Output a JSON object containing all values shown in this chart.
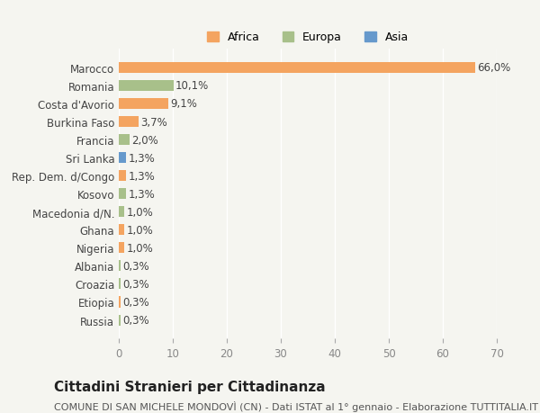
{
  "countries": [
    "Marocco",
    "Romania",
    "Costa d'Avorio",
    "Burkina Faso",
    "Francia",
    "Sri Lanka",
    "Rep. Dem. d/Congo",
    "Kosovo",
    "Macedonia d/N.",
    "Ghana",
    "Nigeria",
    "Albania",
    "Croazia",
    "Etiopia",
    "Russia"
  ],
  "values": [
    66.0,
    10.1,
    9.1,
    3.7,
    2.0,
    1.3,
    1.3,
    1.3,
    1.0,
    1.0,
    1.0,
    0.3,
    0.3,
    0.3,
    0.3
  ],
  "labels": [
    "66,0%",
    "10,1%",
    "9,1%",
    "3,7%",
    "2,0%",
    "1,3%",
    "1,3%",
    "1,3%",
    "1,0%",
    "1,0%",
    "1,0%",
    "0,3%",
    "0,3%",
    "0,3%",
    "0,3%"
  ],
  "continents": [
    "Africa",
    "Europa",
    "Africa",
    "Africa",
    "Europa",
    "Asia",
    "Africa",
    "Europa",
    "Europa",
    "Africa",
    "Africa",
    "Europa",
    "Europa",
    "Africa",
    "Europa"
  ],
  "colors": {
    "Africa": "#F4A460",
    "Europa": "#A8C08A",
    "Asia": "#6699CC"
  },
  "xlim": [
    0,
    70
  ],
  "xticks": [
    0,
    10,
    20,
    30,
    40,
    50,
    60,
    70
  ],
  "title": "Cittadini Stranieri per Cittadinanza",
  "subtitle": "COMUNE DI SAN MICHELE MONDOVÌ (CN) - Dati ISTAT al 1° gennaio - Elaborazione TUTTITALIA.IT",
  "bg_color": "#F5F5F0",
  "bar_height": 0.6,
  "label_fontsize": 8.5,
  "title_fontsize": 11,
  "subtitle_fontsize": 8
}
